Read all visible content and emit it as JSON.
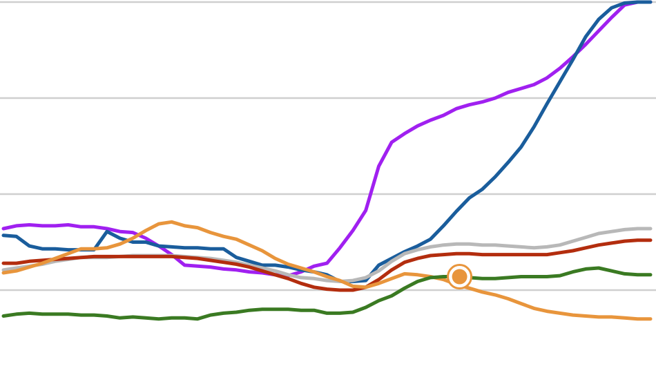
{
  "chart_data": {
    "type": "line",
    "title": "",
    "xlabel": "",
    "ylabel": "",
    "xlim": [
      0,
      100
    ],
    "ylim": [
      -100,
      300
    ],
    "gridlines": [
      0,
      100,
      200,
      300
    ],
    "grid": true,
    "legend": "none",
    "x": [
      0,
      2,
      4,
      6,
      8,
      10,
      12,
      14,
      16,
      18,
      20,
      22,
      24,
      26,
      28,
      30,
      32,
      34,
      36,
      38,
      40,
      42,
      44,
      46,
      48,
      50,
      52,
      54,
      56,
      58,
      60,
      62,
      64,
      66,
      68,
      70,
      72,
      74,
      76,
      78,
      80,
      82,
      84,
      86,
      88,
      90,
      92,
      94,
      96,
      98,
      100
    ],
    "series": [
      {
        "color": "#a020f0",
        "values": [
          64,
          67,
          68,
          67,
          67,
          68,
          66,
          66,
          64,
          61,
          60,
          54,
          46,
          37,
          26,
          25,
          24,
          22,
          21,
          19,
          18,
          16,
          15,
          19,
          25,
          28,
          44,
          62,
          83,
          129,
          154,
          163,
          171,
          177,
          182,
          189,
          193,
          196,
          200,
          206,
          210,
          214,
          221,
          231,
          243,
          256,
          270,
          284,
          297,
          300,
          300
        ]
      },
      {
        "color": "#1a5d9c",
        "values": [
          57,
          56,
          46,
          43,
          43,
          42,
          42,
          42,
          61,
          54,
          50,
          50,
          46,
          45,
          44,
          44,
          43,
          43,
          34,
          30,
          26,
          26,
          24,
          21,
          19,
          16,
          9,
          9,
          10,
          26,
          33,
          40,
          46,
          53,
          67,
          82,
          96,
          105,
          118,
          133,
          149,
          170,
          194,
          217,
          240,
          264,
          282,
          294,
          299,
          300,
          300
        ]
      },
      {
        "color": "#b8b8b8",
        "values": [
          21,
          23,
          25,
          27,
          30,
          32,
          34,
          34,
          34,
          35,
          36,
          36,
          36,
          36,
          35,
          34,
          33,
          31,
          29,
          26,
          23,
          20,
          16,
          13,
          12,
          10,
          9,
          10,
          13,
          20,
          30,
          38,
          42,
          45,
          47,
          48,
          48,
          47,
          47,
          46,
          45,
          44,
          45,
          47,
          51,
          55,
          59,
          61,
          63,
          64,
          64
        ]
      },
      {
        "color": "#b32d0e",
        "values": [
          28,
          28,
          30,
          31,
          32,
          33,
          34,
          35,
          35,
          35,
          35,
          35,
          35,
          35,
          34,
          33,
          31,
          29,
          27,
          24,
          20,
          16,
          12,
          7,
          3,
          1,
          0,
          0,
          3,
          11,
          21,
          29,
          33,
          36,
          37,
          38,
          38,
          37,
          37,
          37,
          37,
          37,
          37,
          39,
          41,
          44,
          47,
          49,
          51,
          52,
          52
        ]
      },
      {
        "color": "#e8953c",
        "values": [
          18,
          20,
          24,
          28,
          33,
          38,
          43,
          43,
          44,
          48,
          54,
          62,
          69,
          71,
          67,
          65,
          60,
          56,
          53,
          47,
          41,
          33,
          27,
          23,
          19,
          14,
          10,
          4,
          3,
          7,
          12,
          17,
          16,
          14,
          11,
          6,
          2,
          -2,
          -5,
          -9,
          -14,
          -19,
          -22,
          -24,
          -26,
          -27,
          -28,
          -28,
          -29,
          -30,
          -30
        ]
      },
      {
        "color": "#3a7a22",
        "values": [
          -27,
          -25,
          -24,
          -25,
          -25,
          -25,
          -26,
          -26,
          -27,
          -29,
          -28,
          -29,
          -30,
          -29,
          -29,
          -30,
          -26,
          -24,
          -23,
          -21,
          -20,
          -20,
          -20,
          -21,
          -21,
          -24,
          -24,
          -23,
          -18,
          -11,
          -6,
          2,
          9,
          13,
          14,
          14,
          13,
          12,
          12,
          13,
          14,
          14,
          14,
          15,
          19,
          22,
          23,
          20,
          17,
          16,
          16
        ]
      }
    ],
    "highlight": {
      "x": 70.5,
      "y": 14,
      "color": "#e8953c"
    }
  }
}
